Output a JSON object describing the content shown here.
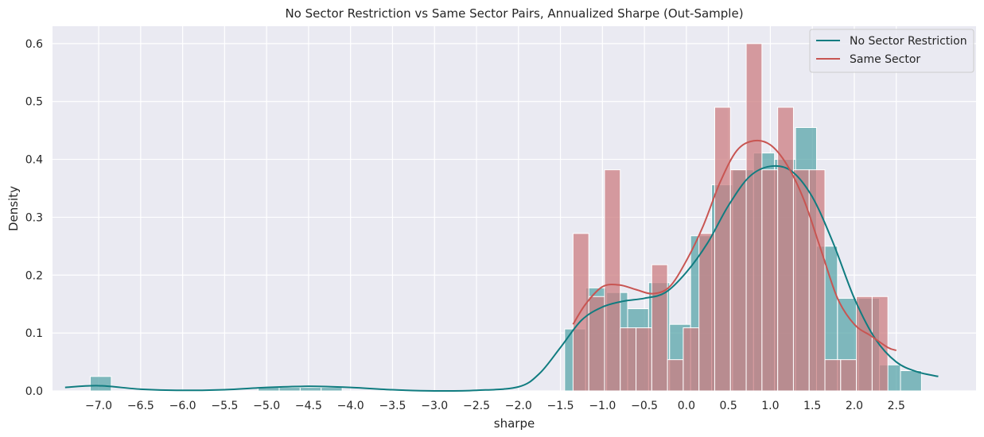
{
  "chart_data": {
    "type": "histogram",
    "title": "No Sector Restriction vs Same Sector Pairs, Annualized Sharpe (Out-Sample)",
    "xlabel": "sharpe",
    "ylabel": "Density",
    "xlim": [
      -7.55,
      3.45
    ],
    "ylim": [
      0,
      0.63
    ],
    "xticks": [
      -7.0,
      -6.5,
      -6.0,
      -5.5,
      -5.0,
      -4.5,
      -4.0,
      -3.5,
      -3.0,
      -2.5,
      -2.0,
      -1.5,
      -1.0,
      -0.5,
      0.0,
      0.5,
      1.0,
      1.5,
      2.0,
      2.5
    ],
    "xtick_labels": [
      "−7.0",
      "−6.5",
      "−6.0",
      "−5.5",
      "−5.0",
      "−4.5",
      "−4.0",
      "−3.5",
      "−3.0",
      "−2.5",
      "−2.0",
      "−1.5",
      "−1.0",
      "−0.5",
      "0.0",
      "0.5",
      "1.0",
      "1.5",
      "2.0",
      "2.5"
    ],
    "yticks": [
      0.0,
      0.1,
      0.2,
      0.3,
      0.4,
      0.5,
      0.6
    ],
    "ytick_labels": [
      "0.0",
      "0.1",
      "0.2",
      "0.3",
      "0.4",
      "0.5",
      "0.6"
    ],
    "grid": true,
    "legend_position": "top-right",
    "series": [
      {
        "name": "No Sector Restriction",
        "color": "#107c80",
        "bar_color": "#5aa6a9",
        "bin_width": 0.25,
        "bins": [
          {
            "x0": -7.35,
            "h": 0.0
          },
          {
            "x0": -7.1,
            "h": 0.025
          },
          {
            "x0": -6.85,
            "h": 0.0
          },
          {
            "x0": -5.1,
            "h": 0.006
          },
          {
            "x0": -4.85,
            "h": 0.006
          },
          {
            "x0": -4.6,
            "h": 0.006
          },
          {
            "x0": -4.35,
            "h": 0.006
          },
          {
            "x0": -1.45,
            "h": 0.107
          },
          {
            "x0": -1.2,
            "h": 0.178
          },
          {
            "x0": -0.95,
            "h": 0.17
          },
          {
            "x0": -0.7,
            "h": 0.142
          },
          {
            "x0": -0.45,
            "h": 0.187
          },
          {
            "x0": -0.2,
            "h": 0.115
          },
          {
            "x0": 0.05,
            "h": 0.268
          },
          {
            "x0": 0.3,
            "h": 0.356
          },
          {
            "x0": 0.55,
            "h": 0.382
          },
          {
            "x0": 0.8,
            "h": 0.411
          },
          {
            "x0": 1.05,
            "h": 0.4
          },
          {
            "x0": 1.3,
            "h": 0.455
          },
          {
            "x0": 1.55,
            "h": 0.25
          },
          {
            "x0": 1.8,
            "h": 0.16
          },
          {
            "x0": 2.05,
            "h": 0.16
          },
          {
            "x0": 2.3,
            "h": 0.045
          },
          {
            "x0": 2.55,
            "h": 0.035
          }
        ],
        "kde": {
          "x": [
            -7.4,
            -7.0,
            -6.5,
            -6.0,
            -5.5,
            -5.0,
            -4.5,
            -4.0,
            -3.5,
            -3.0,
            -2.5,
            -2.0,
            -1.75,
            -1.5,
            -1.25,
            -1.0,
            -0.75,
            -0.5,
            -0.25,
            0.0,
            0.25,
            0.5,
            0.75,
            1.0,
            1.25,
            1.5,
            1.75,
            2.0,
            2.25,
            2.5,
            2.75,
            3.0
          ],
          "y": [
            0.006,
            0.009,
            0.003,
            0.001,
            0.002,
            0.006,
            0.008,
            0.006,
            0.002,
            0.0,
            0.001,
            0.007,
            0.03,
            0.075,
            0.122,
            0.145,
            0.155,
            0.16,
            0.17,
            0.205,
            0.255,
            0.32,
            0.37,
            0.388,
            0.38,
            0.335,
            0.255,
            0.16,
            0.09,
            0.05,
            0.033,
            0.025
          ]
        }
      },
      {
        "name": "Same Sector",
        "color": "#c85552",
        "bar_color": "#cc7e82",
        "bin_width": 0.1875,
        "bins": [
          {
            "x0": -1.35,
            "h": 0.272
          },
          {
            "x0": -1.1625,
            "h": 0.163
          },
          {
            "x0": -0.975,
            "h": 0.382
          },
          {
            "x0": -0.7875,
            "h": 0.109
          },
          {
            "x0": -0.6,
            "h": 0.109
          },
          {
            "x0": -0.4125,
            "h": 0.218
          },
          {
            "x0": -0.225,
            "h": 0.054
          },
          {
            "x0": -0.0375,
            "h": 0.109
          },
          {
            "x0": 0.15,
            "h": 0.272
          },
          {
            "x0": 0.3375,
            "h": 0.49
          },
          {
            "x0": 0.525,
            "h": 0.382
          },
          {
            "x0": 0.7125,
            "h": 0.6
          },
          {
            "x0": 0.9,
            "h": 0.382
          },
          {
            "x0": 1.0875,
            "h": 0.49
          },
          {
            "x0": 1.275,
            "h": 0.382
          },
          {
            "x0": 1.4625,
            "h": 0.382
          },
          {
            "x0": 1.65,
            "h": 0.054
          },
          {
            "x0": 1.8375,
            "h": 0.054
          },
          {
            "x0": 2.025,
            "h": 0.163
          },
          {
            "x0": 2.2125,
            "h": 0.163
          }
        ],
        "kde": {
          "x": [
            -1.35,
            -1.2,
            -1.0,
            -0.8,
            -0.6,
            -0.4,
            -0.2,
            0.0,
            0.2,
            0.4,
            0.6,
            0.8,
            1.0,
            1.2,
            1.4,
            1.6,
            1.8,
            2.0,
            2.2,
            2.4,
            2.5
          ],
          "y": [
            0.115,
            0.15,
            0.18,
            0.183,
            0.175,
            0.168,
            0.18,
            0.225,
            0.285,
            0.36,
            0.415,
            0.432,
            0.425,
            0.39,
            0.33,
            0.245,
            0.16,
            0.115,
            0.095,
            0.075,
            0.07
          ]
        }
      }
    ]
  }
}
